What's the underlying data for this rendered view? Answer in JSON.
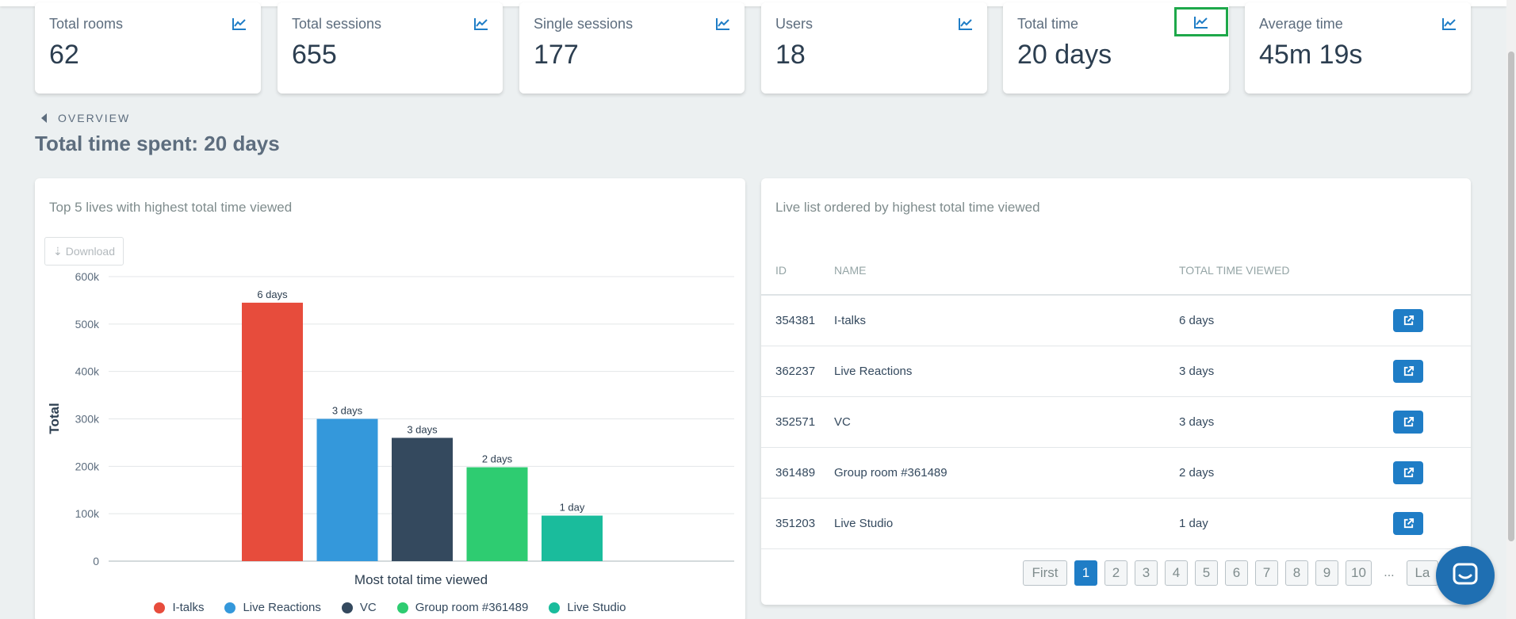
{
  "stats": [
    {
      "label": "Total rooms",
      "value": "62",
      "icon": "trend-chart-icon"
    },
    {
      "label": "Total sessions",
      "value": "655",
      "icon": "trend-chart-icon"
    },
    {
      "label": "Single sessions",
      "value": "177",
      "icon": "trend-chart-icon"
    },
    {
      "label": "Users",
      "value": "18",
      "icon": "trend-chart-icon"
    },
    {
      "label": "Total time",
      "value": "20 days",
      "icon": "trend-chart-icon"
    },
    {
      "label": "Average time",
      "value": "45m 19s",
      "icon": "trend-chart-icon"
    }
  ],
  "breadcrumb": {
    "label": "OVERVIEW",
    "icon": "caret-left-icon"
  },
  "page_title": "Total time spent: 20 days",
  "chart_panel": {
    "title": "Top 5 lives with highest total time viewed",
    "download_label": "Download",
    "download_icon": "download-icon"
  },
  "chart_data": {
    "type": "bar",
    "categories": [
      "I-talks",
      "Live Reactions",
      "VC",
      "Group room #361489",
      "Live Studio"
    ],
    "values": [
      545000,
      300000,
      260000,
      198000,
      96000
    ],
    "data_labels": [
      "6 days",
      "3 days",
      "3 days",
      "2 days",
      "1 day"
    ],
    "colors": [
      "#e74c3c",
      "#3498db",
      "#34495e",
      "#2ecc71",
      "#1abc9c"
    ],
    "xlabel": "Most total time viewed",
    "ylabel": "Total",
    "ylim": [
      0,
      600000
    ],
    "yticks": [
      "0",
      "100k",
      "200k",
      "300k",
      "400k",
      "500k",
      "600k"
    ],
    "grid": true,
    "legend": "bottom"
  },
  "list_panel": {
    "title": "Live list ordered by highest total time viewed",
    "columns": [
      "ID",
      "NAME",
      "TOTAL TIME VIEWED"
    ],
    "rows": [
      {
        "id": "354381",
        "name": "I-talks",
        "time": "6 days"
      },
      {
        "id": "362237",
        "name": "Live Reactions",
        "time": "3 days"
      },
      {
        "id": "352571",
        "name": "VC",
        "time": "3 days"
      },
      {
        "id": "361489",
        "name": "Group room #361489",
        "time": "2 days"
      },
      {
        "id": "351203",
        "name": "Live Studio",
        "time": "1 day"
      }
    ],
    "open_icon": "external-link-icon",
    "pager": {
      "first": "First",
      "pages": [
        "1",
        "2",
        "3",
        "4",
        "5",
        "6",
        "7",
        "8",
        "9",
        "10"
      ],
      "active": "1",
      "ellipsis": "...",
      "last": "La"
    }
  },
  "chat": {
    "icon": "chat-icon"
  }
}
